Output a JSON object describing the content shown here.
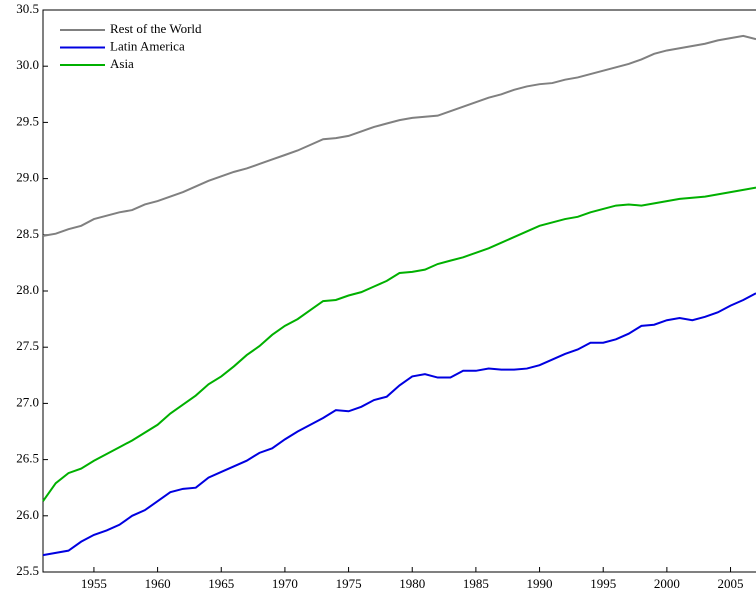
{
  "chart_data": {
    "type": "line",
    "x": [
      1951,
      1952,
      1953,
      1954,
      1955,
      1956,
      1957,
      1958,
      1959,
      1960,
      1961,
      1962,
      1963,
      1964,
      1965,
      1966,
      1967,
      1968,
      1969,
      1970,
      1971,
      1972,
      1973,
      1974,
      1975,
      1976,
      1977,
      1978,
      1979,
      1980,
      1981,
      1982,
      1983,
      1984,
      1985,
      1986,
      1987,
      1988,
      1989,
      1990,
      1991,
      1992,
      1993,
      1994,
      1995,
      1996,
      1997,
      1998,
      1999,
      2000,
      2001,
      2002,
      2003,
      2004,
      2005,
      2006,
      2007
    ],
    "series": [
      {
        "name": "Rest of the World",
        "color": "#808080",
        "values": [
          28.49,
          28.51,
          28.55,
          28.58,
          28.64,
          28.67,
          28.7,
          28.72,
          28.77,
          28.8,
          28.84,
          28.88,
          28.93,
          28.98,
          29.02,
          29.06,
          29.09,
          29.13,
          29.17,
          29.21,
          29.25,
          29.3,
          29.35,
          29.36,
          29.38,
          29.42,
          29.46,
          29.49,
          29.52,
          29.54,
          29.55,
          29.56,
          29.6,
          29.64,
          29.68,
          29.72,
          29.75,
          29.79,
          29.82,
          29.84,
          29.85,
          29.88,
          29.9,
          29.93,
          29.96,
          29.99,
          30.02,
          30.06,
          30.11,
          30.14,
          30.16,
          30.18,
          30.2,
          30.23,
          30.25,
          30.27,
          30.24
        ]
      },
      {
        "name": "Latin America",
        "color": "#0000e0",
        "values": [
          25.65,
          25.67,
          25.69,
          25.77,
          25.83,
          25.87,
          25.92,
          26.0,
          26.05,
          26.13,
          26.21,
          26.24,
          26.25,
          26.34,
          26.39,
          26.44,
          26.49,
          26.56,
          26.6,
          26.68,
          26.75,
          26.81,
          26.87,
          26.94,
          26.93,
          26.97,
          27.03,
          27.06,
          27.16,
          27.24,
          27.26,
          27.23,
          27.23,
          27.29,
          27.29,
          27.31,
          27.3,
          27.3,
          27.31,
          27.34,
          27.39,
          27.44,
          27.48,
          27.54,
          27.54,
          27.57,
          27.62,
          27.69,
          27.7,
          27.74,
          27.76,
          27.74,
          27.77,
          27.81,
          27.87,
          27.92,
          27.98
        ]
      },
      {
        "name": "Asia",
        "color": "#00b000",
        "values": [
          26.13,
          26.29,
          26.38,
          26.42,
          26.49,
          26.55,
          26.61,
          26.67,
          26.74,
          26.81,
          26.91,
          26.99,
          27.07,
          27.17,
          27.24,
          27.33,
          27.43,
          27.51,
          27.61,
          27.69,
          27.75,
          27.83,
          27.91,
          27.92,
          27.96,
          27.99,
          28.04,
          28.09,
          28.16,
          28.17,
          28.19,
          28.24,
          28.27,
          28.3,
          28.34,
          28.38,
          28.43,
          28.48,
          28.53,
          28.58,
          28.61,
          28.64,
          28.66,
          28.7,
          28.73,
          28.76,
          28.77,
          28.76,
          28.78,
          28.8,
          28.82,
          28.83,
          28.84,
          28.86,
          28.88,
          28.9,
          28.92
        ]
      }
    ],
    "xlim": [
      1951,
      2007
    ],
    "xticks": [
      1955,
      1960,
      1965,
      1970,
      1975,
      1980,
      1985,
      1990,
      1995,
      2000,
      2005
    ],
    "ylim": [
      25.5,
      30.5
    ],
    "yticks": [
      25.5,
      {
        "value": 26,
        "label": "26.0"
      },
      26.5,
      {
        "value": 27,
        "label": "27.0"
      },
      27.5,
      {
        "value": 28,
        "label": "28.0"
      },
      28.5,
      {
        "value": 29,
        "label": "29.0"
      },
      29.5,
      {
        "value": 30,
        "label": "30.0"
      },
      30.5
    ],
    "legend": "upper-left"
  }
}
